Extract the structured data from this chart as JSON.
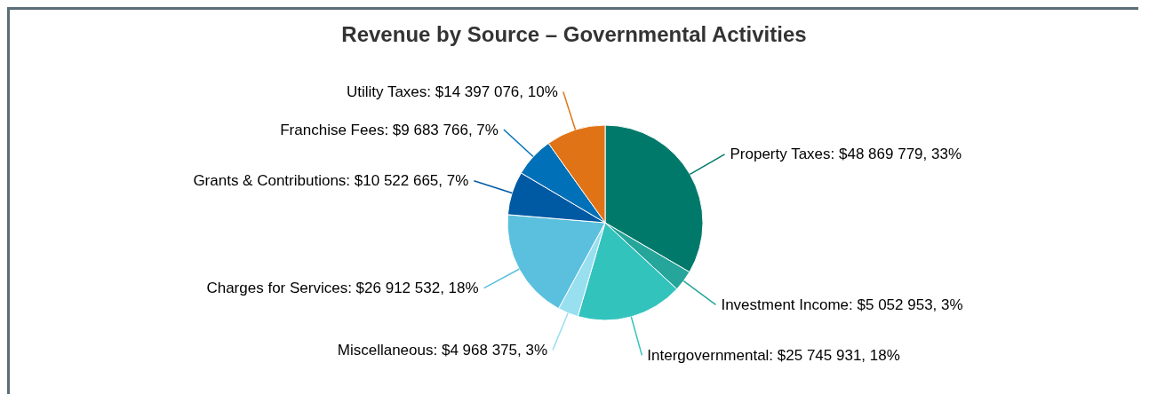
{
  "chart_data": {
    "type": "pie",
    "title": "Revenue by Source – Governmental Activities",
    "categories": [
      "Property Taxes",
      "Investment Income",
      "Intergovernmental",
      "Miscellaneous",
      "Charges for Services",
      "Grants & Contributions",
      "Franchise Fees",
      "Utility Taxes"
    ],
    "values": [
      48869779,
      5052953,
      25745931,
      4968375,
      26912532,
      10522665,
      9683766,
      14397076
    ],
    "value_labels": [
      "$48 869 779, 33%",
      "$5 052 953, 3%",
      "$25 745 931, 18%",
      "$4 968 375, 3%",
      "$26 912 532, 18%",
      "$10 522 665, 7%",
      "$9 683 766, 7%",
      "$14 397 076, 10%"
    ],
    "colors": [
      "#00796b",
      "#26a69a",
      "#33c3bd",
      "#98dff0",
      "#5bc0de",
      "#0059a3",
      "#0070b8",
      "#e07316"
    ],
    "legend": false
  }
}
